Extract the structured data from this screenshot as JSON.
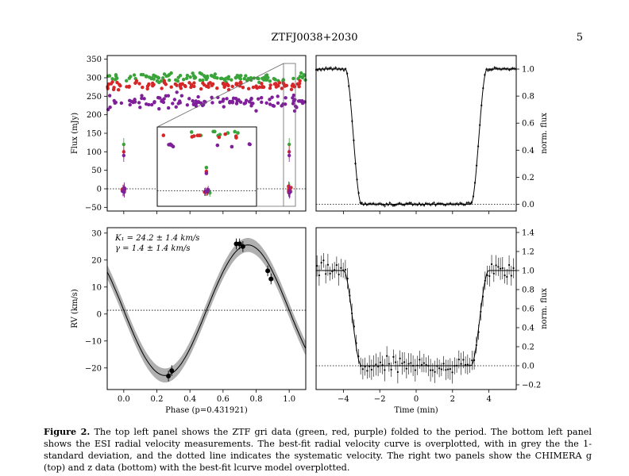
{
  "header": {
    "title": "ZTFJ0038+2030",
    "page_number": "5"
  },
  "caption": {
    "label": "Figure 2.",
    "text": "The top left panel shows the ZTF gri data (green, red, purple) folded to the period. The bottom left panel shows the ESI radial velocity measurements. The best-fit radial velocity curve is overplotted, with in grey the the 1-standard deviation, and the dotted line indicates the systematic velocity. The right two panels show the CHIMERA g (top) and z data (bottom) with the best-fit lcurve model overplotted."
  },
  "colors": {
    "green": "#3aa33a",
    "red": "#d62728",
    "purple": "#7f1f9a",
    "band": "#b0b0b0"
  },
  "chart_data": [
    {
      "id": "ztf-lightcurve",
      "type": "scatter",
      "ylabel": "Flux (mJy)",
      "xlim": [
        -0.1,
        1.1
      ],
      "ylim": [
        -60,
        360
      ],
      "yticks": [
        -50,
        0,
        50,
        100,
        150,
        200,
        250,
        300,
        350
      ],
      "eclipse_phases": [
        0.0,
        1.0
      ],
      "series": [
        {
          "color": "green",
          "baseline": 300,
          "eclipse_depth": -5
        },
        {
          "color": "red",
          "baseline": 280,
          "eclipse_depth": 0
        },
        {
          "color": "purple",
          "baseline": 235,
          "eclipse_depth": -3
        }
      ],
      "mid_eclipse_values": [
        120,
        100,
        90
      ],
      "inset": {
        "xlim": [
          0.95,
          1.05
        ]
      }
    },
    {
      "id": "chimera-g",
      "type": "line",
      "ylabel": "norm. flux",
      "xlim": [
        -5.5,
        5.5
      ],
      "ylim": [
        -0.05,
        1.1
      ],
      "yticks": [
        0.0,
        0.2,
        0.4,
        0.6,
        0.8,
        1.0
      ],
      "ingress": [
        -3.9,
        -3.0
      ],
      "egress": [
        3.0,
        3.9
      ]
    },
    {
      "id": "esi-rv",
      "type": "scatter",
      "xlabel": "Phase (p=0.431921)",
      "ylabel": "RV (km/s)",
      "xlim": [
        -0.1,
        1.1
      ],
      "ylim": [
        -28,
        32
      ],
      "xticks": [
        0.0,
        0.2,
        0.4,
        0.6,
        0.8,
        1.0
      ],
      "yticks": [
        -20,
        -10,
        0,
        10,
        20,
        30
      ],
      "annotation_k1": "K₁ = 24.2 ± 1.4 km/s",
      "annotation_gamma": "γ = 1.4 ± 1.4 km/s",
      "K1": 24.2,
      "gamma": 1.4,
      "sigma_band": 1.4,
      "points": [
        {
          "x": 0.27,
          "y": -23,
          "err": 2.0
        },
        {
          "x": 0.29,
          "y": -21,
          "err": 2.0
        },
        {
          "x": 0.68,
          "y": 26,
          "err": 2.0
        },
        {
          "x": 0.7,
          "y": 26,
          "err": 2.0
        },
        {
          "x": 0.72,
          "y": 25,
          "err": 2.0
        },
        {
          "x": 0.87,
          "y": 16,
          "err": 2.0
        },
        {
          "x": 0.89,
          "y": 13,
          "err": 2.0
        }
      ]
    },
    {
      "id": "chimera-z",
      "type": "line",
      "xlabel": "Time (min)",
      "ylabel": "norm. flux",
      "xlim": [
        -5.5,
        5.5
      ],
      "ylim": [
        -0.25,
        1.45
      ],
      "xticks": [
        -4,
        -2,
        0,
        2,
        4
      ],
      "yticks": [
        -0.2,
        0.0,
        0.2,
        0.4,
        0.6,
        0.8,
        1.0,
        1.2,
        1.4
      ],
      "ingress": [
        -4.0,
        -3.0
      ],
      "egress": [
        3.0,
        4.0
      ]
    }
  ]
}
